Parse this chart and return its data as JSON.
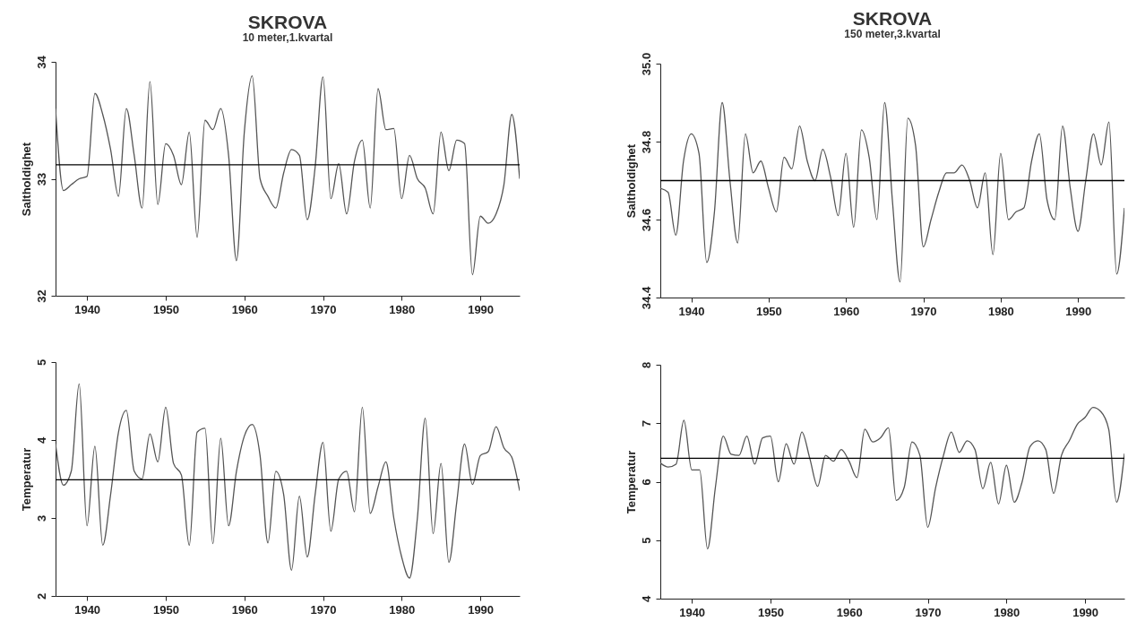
{
  "chart_data": [
    {
      "type": "line",
      "title": "SKROVA",
      "subtitle": "10 meter,1.kvartal",
      "ylabel": "Saltholdighet",
      "x": [
        1936,
        1937,
        1938,
        1939,
        1940,
        1941,
        1942,
        1943,
        1944,
        1945,
        1946,
        1947,
        1948,
        1949,
        1950,
        1951,
        1952,
        1953,
        1954,
        1955,
        1956,
        1957,
        1958,
        1959,
        1960,
        1961,
        1962,
        1963,
        1964,
        1965,
        1966,
        1967,
        1968,
        1969,
        1970,
        1971,
        1972,
        1973,
        1974,
        1975,
        1976,
        1977,
        1978,
        1979,
        1980,
        1981,
        1982,
        1983,
        1984,
        1985,
        1986,
        1987,
        1988,
        1989,
        1990,
        1991,
        1992,
        1993,
        1994,
        1995
      ],
      "series": [
        {
          "color": "#555555",
          "values": [
            33.6,
            32.9,
            32.95,
            33.0,
            33.02,
            33.73,
            33.55,
            33.25,
            32.85,
            33.6,
            33.2,
            32.75,
            33.83,
            32.78,
            33.3,
            33.2,
            32.95,
            33.4,
            32.5,
            33.5,
            33.42,
            33.6,
            33.2,
            32.3,
            33.4,
            33.88,
            33.0,
            32.85,
            32.75,
            33.05,
            33.25,
            33.2,
            32.65,
            33.1,
            33.87,
            32.83,
            33.13,
            32.7,
            33.15,
            33.33,
            32.75,
            33.77,
            33.42,
            33.43,
            32.83,
            33.2,
            33.0,
            32.92,
            32.7,
            33.4,
            33.07,
            33.33,
            33.3,
            32.18,
            32.68,
            32.62,
            32.7,
            32.95,
            33.55,
            33.0
          ]
        }
      ],
      "xlim": [
        1936,
        1995
      ],
      "xticks": [
        1940,
        1950,
        1960,
        1970,
        1980,
        1990
      ],
      "ylim": [
        32,
        34
      ],
      "yticks": [
        32,
        33,
        34
      ],
      "ref_lines": [
        {
          "axis": "y",
          "value": 33.12,
          "color": "#000000"
        }
      ]
    },
    {
      "type": "line",
      "title": "SKROVA",
      "subtitle": "150 meter,3.kvartal",
      "ylabel": "Saltholdighet",
      "x": [
        1936,
        1937,
        1938,
        1939,
        1940,
        1941,
        1942,
        1943,
        1944,
        1945,
        1946,
        1947,
        1948,
        1949,
        1950,
        1951,
        1952,
        1953,
        1954,
        1955,
        1956,
        1957,
        1958,
        1959,
        1960,
        1961,
        1962,
        1963,
        1964,
        1965,
        1966,
        1967,
        1968,
        1969,
        1970,
        1971,
        1972,
        1973,
        1974,
        1975,
        1976,
        1977,
        1978,
        1979,
        1980,
        1981,
        1982,
        1983,
        1984,
        1985,
        1986,
        1987,
        1988,
        1989,
        1990,
        1991,
        1992,
        1993,
        1994,
        1995,
        1996
      ],
      "series": [
        {
          "color": "#555555",
          "values": [
            34.68,
            34.67,
            34.56,
            34.75,
            34.82,
            34.77,
            34.49,
            34.62,
            34.9,
            34.7,
            34.54,
            34.82,
            34.72,
            34.75,
            34.68,
            34.62,
            34.76,
            34.73,
            34.84,
            34.75,
            34.7,
            34.78,
            34.71,
            34.61,
            34.77,
            34.58,
            34.83,
            34.76,
            34.6,
            34.9,
            34.65,
            34.44,
            34.86,
            34.79,
            34.53,
            34.6,
            34.67,
            34.72,
            34.72,
            34.74,
            34.7,
            34.63,
            34.72,
            34.51,
            34.77,
            34.6,
            34.62,
            34.63,
            34.75,
            34.82,
            34.65,
            34.6,
            34.84,
            34.68,
            34.57,
            34.7,
            34.82,
            34.74,
            34.85,
            34.46,
            34.63
          ]
        }
      ],
      "xlim": [
        1936,
        1996
      ],
      "xticks": [
        1940,
        1950,
        1960,
        1970,
        1980,
        1990
      ],
      "ylim": [
        34.4,
        35.0
      ],
      "yticks": [
        34.4,
        34.6,
        34.8,
        {
          "value": 35.0,
          "label": "35.0"
        }
      ],
      "ref_lines": [
        {
          "axis": "y",
          "value": 34.7,
          "color": "#000000"
        }
      ]
    },
    {
      "type": "line",
      "ylabel": "Temperatur",
      "x": [
        1936,
        1937,
        1938,
        1939,
        1940,
        1941,
        1942,
        1943,
        1944,
        1945,
        1946,
        1947,
        1948,
        1949,
        1950,
        1951,
        1952,
        1953,
        1954,
        1955,
        1956,
        1957,
        1958,
        1959,
        1960,
        1961,
        1962,
        1963,
        1964,
        1965,
        1966,
        1967,
        1968,
        1969,
        1970,
        1971,
        1972,
        1973,
        1974,
        1975,
        1976,
        1977,
        1978,
        1979,
        1980,
        1981,
        1982,
        1983,
        1984,
        1985,
        1986,
        1987,
        1988,
        1989,
        1990,
        1991,
        1992,
        1993,
        1994,
        1995
      ],
      "series": [
        {
          "color": "#555555",
          "values": [
            3.95,
            3.42,
            3.6,
            4.72,
            2.9,
            3.92,
            2.65,
            3.3,
            4.1,
            4.38,
            3.6,
            3.5,
            4.08,
            3.72,
            4.42,
            3.7,
            3.55,
            2.65,
            4.1,
            4.15,
            2.67,
            4.02,
            2.9,
            3.6,
            4.05,
            4.2,
            3.8,
            2.68,
            3.6,
            3.3,
            2.33,
            3.28,
            2.5,
            3.3,
            3.97,
            2.83,
            3.5,
            3.6,
            3.08,
            4.42,
            3.06,
            3.4,
            3.72,
            3.0,
            2.5,
            2.23,
            3.0,
            4.28,
            2.8,
            3.7,
            2.43,
            3.2,
            3.95,
            3.43,
            3.8,
            3.85,
            4.17,
            3.9,
            3.78,
            3.35
          ]
        }
      ],
      "xlim": [
        1936,
        1995
      ],
      "xticks": [
        1940,
        1950,
        1960,
        1970,
        1980,
        1990
      ],
      "ylim": [
        2,
        5
      ],
      "yticks": [
        2,
        3,
        4,
        5
      ],
      "ref_lines": [
        {
          "axis": "y",
          "value": 3.49,
          "color": "#000000"
        }
      ]
    },
    {
      "type": "line",
      "ylabel": "Temperatur",
      "x": [
        1936,
        1937,
        1938,
        1939,
        1940,
        1941,
        1942,
        1943,
        1944,
        1945,
        1946,
        1947,
        1948,
        1949,
        1950,
        1951,
        1952,
        1953,
        1954,
        1955,
        1956,
        1957,
        1958,
        1959,
        1960,
        1961,
        1962,
        1963,
        1964,
        1965,
        1966,
        1967,
        1968,
        1969,
        1970,
        1971,
        1972,
        1973,
        1974,
        1975,
        1976,
        1977,
        1978,
        1979,
        1980,
        1981,
        1982,
        1983,
        1984,
        1985,
        1986,
        1987,
        1988,
        1989,
        1990,
        1991,
        1992,
        1993,
        1994,
        1995
      ],
      "series": [
        {
          "color": "#555555",
          "values": [
            6.32,
            6.25,
            6.3,
            7.05,
            6.2,
            6.2,
            4.85,
            5.9,
            6.78,
            6.47,
            6.45,
            6.78,
            6.3,
            6.75,
            6.78,
            6.0,
            6.65,
            6.3,
            6.85,
            6.4,
            5.92,
            6.45,
            6.35,
            6.55,
            6.35,
            6.07,
            6.9,
            6.68,
            6.75,
            6.92,
            5.68,
            5.9,
            6.68,
            6.45,
            5.22,
            5.9,
            6.45,
            6.85,
            6.5,
            6.7,
            6.55,
            5.88,
            6.33,
            5.62,
            6.28,
            5.65,
            6.0,
            6.6,
            6.7,
            6.55,
            5.8,
            6.45,
            6.7,
            6.98,
            7.1,
            7.27,
            7.2,
            6.9,
            5.65,
            6.48
          ]
        }
      ],
      "xlim": [
        1936,
        1995
      ],
      "xticks": [
        1940,
        1950,
        1960,
        1970,
        1980,
        1990
      ],
      "ylim": [
        4,
        8
      ],
      "yticks": [
        4,
        5,
        6,
        7,
        8
      ],
      "ref_lines": [
        {
          "axis": "y",
          "value": 6.4,
          "color": "#000000"
        }
      ]
    }
  ]
}
